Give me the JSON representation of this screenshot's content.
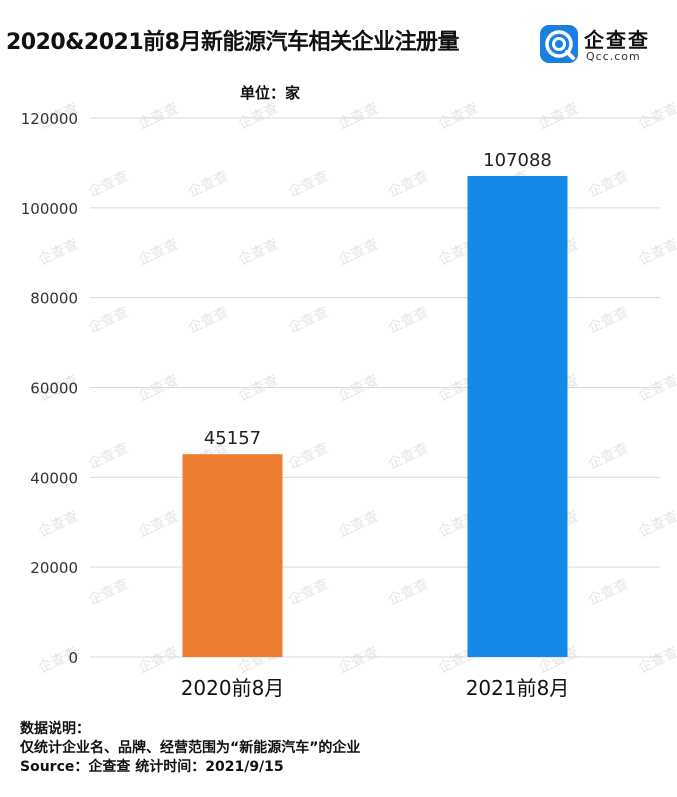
{
  "title": "2020&2021前8月新能源汽车相关企业注册量",
  "logo": {
    "name": "企查查",
    "sub": "Qcc.com",
    "icon": "qcc-logo-icon",
    "color": "#1a7fe0"
  },
  "unit_label": "单位：家",
  "footer": {
    "heading": "数据说明：",
    "note": "仅统计企业名、品牌、经营范围为“新能源汽车”的企业",
    "source": "Source：企查查   统计时间：2021/9/15"
  },
  "watermark": {
    "text": "企查查"
  },
  "chart_data": {
    "type": "bar",
    "categories": [
      "2020前8月",
      "2021前8月"
    ],
    "values": [
      45157,
      107088
    ],
    "colors": [
      "#ed7d31",
      "#1589e8"
    ],
    "data_labels": [
      "45157",
      "107088"
    ],
    "ylim": [
      0,
      120000
    ],
    "yticks": [
      0,
      20000,
      40000,
      60000,
      80000,
      100000,
      120000
    ],
    "ytick_labels": [
      "0",
      "20000",
      "40000",
      "60000",
      "80000",
      "100000",
      "120000"
    ],
    "grid": true,
    "legend": "none"
  }
}
